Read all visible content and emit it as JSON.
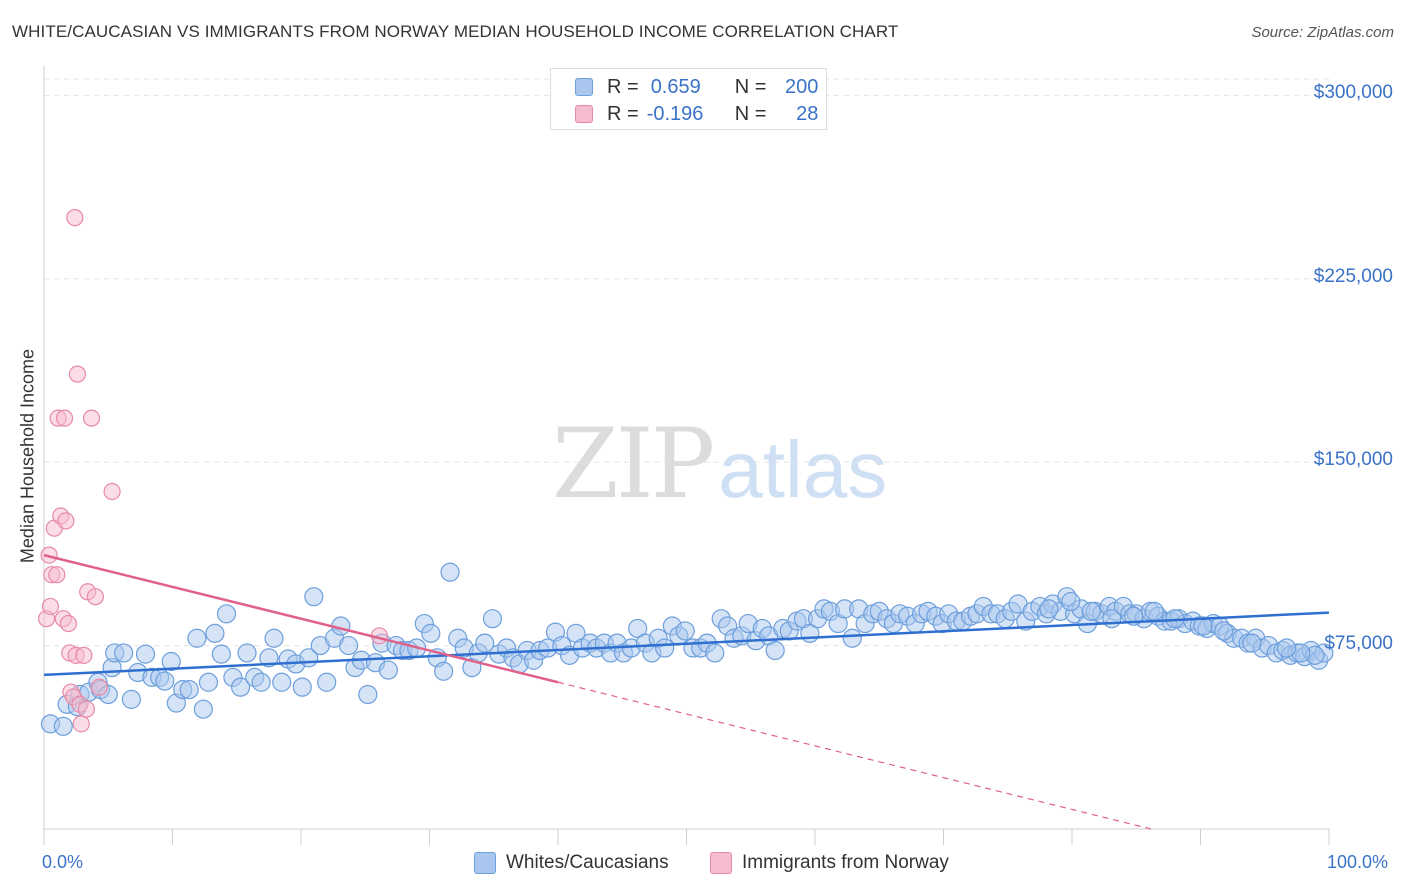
{
  "header": {
    "title": "WHITE/CAUCASIAN VS IMMIGRANTS FROM NORWAY MEDIAN HOUSEHOLD INCOME CORRELATION CHART",
    "source": "Source: ZipAtlas.com"
  },
  "watermark": {
    "zip": "ZIP",
    "atlas": "atlas"
  },
  "legend": {
    "series1": {
      "r_label": "R =",
      "r_value": "0.659",
      "n_label": "N =",
      "n_value": "200"
    },
    "series2": {
      "r_label": "R =",
      "r_value": "-0.196",
      "n_label": "N =",
      "n_value": "28"
    }
  },
  "colors": {
    "blue_fill": "#a9c7ee",
    "blue_stroke": "#6d9fdc",
    "blue_line": "#2f6fcf",
    "pink_fill": "#f5bccd",
    "pink_stroke": "#e88aa6",
    "pink_line": "#e0608a",
    "accent_text": "#3a72c8"
  },
  "chart_data": {
    "type": "scatter",
    "title": "WHITE/CAUCASIAN VS IMMIGRANTS FROM NORWAY MEDIAN HOUSEHOLD INCOME CORRELATION CHART",
    "xlabel": "",
    "ylabel": "Median Household Income",
    "xlim": [
      0,
      100
    ],
    "ylim": [
      0,
      312000
    ],
    "x_tick_labels": [
      "0.0%",
      "100.0%"
    ],
    "y_ticks": [
      75000,
      150000,
      225000,
      300000
    ],
    "y_tick_labels": [
      "$75,000",
      "$150,000",
      "$225,000",
      "$300,000"
    ],
    "grid": true,
    "legend_position": "bottom-center",
    "series": [
      {
        "name": "Whites/Caucasians",
        "color": "#a9c7ee",
        "trend": {
          "x": [
            0,
            100
          ],
          "y": [
            63000,
            88500
          ]
        },
        "points": [
          [
            0.5,
            43000
          ],
          [
            1.5,
            42000
          ],
          [
            1.8,
            51000
          ],
          [
            2.8,
            55000
          ],
          [
            2.6,
            50000
          ],
          [
            3.5,
            56000
          ],
          [
            4.2,
            60000
          ],
          [
            4.4,
            57000
          ],
          [
            5.0,
            55000
          ],
          [
            5.3,
            66000
          ],
          [
            5.5,
            72000
          ],
          [
            6.2,
            72000
          ],
          [
            6.8,
            53000
          ],
          [
            7.3,
            64000
          ],
          [
            7.9,
            71500
          ],
          [
            8.4,
            62000
          ],
          [
            9.0,
            62000
          ],
          [
            9.4,
            60500
          ],
          [
            9.9,
            68500
          ],
          [
            10.3,
            51500
          ],
          [
            10.8,
            57000
          ],
          [
            11.3,
            57000
          ],
          [
            11.9,
            78000
          ],
          [
            12.4,
            49000
          ],
          [
            12.8,
            60000
          ],
          [
            13.3,
            80000
          ],
          [
            13.8,
            71500
          ],
          [
            14.2,
            88000
          ],
          [
            14.7,
            62000
          ],
          [
            15.3,
            58000
          ],
          [
            15.8,
            72000
          ],
          [
            16.4,
            62000
          ],
          [
            16.9,
            60000
          ],
          [
            17.5,
            70000
          ],
          [
            17.9,
            78000
          ],
          [
            18.5,
            60000
          ],
          [
            19.0,
            69500
          ],
          [
            19.6,
            67500
          ],
          [
            20.1,
            58000
          ],
          [
            20.6,
            70000
          ],
          [
            21.0,
            95000
          ],
          [
            21.5,
            75000
          ],
          [
            22.0,
            60000
          ],
          [
            22.6,
            78000
          ],
          [
            23.1,
            83000
          ],
          [
            23.7,
            75000
          ],
          [
            24.2,
            66000
          ],
          [
            24.7,
            69000
          ],
          [
            25.2,
            55000
          ],
          [
            25.8,
            68000
          ],
          [
            26.3,
            76000
          ],
          [
            26.8,
            65000
          ],
          [
            27.4,
            75000
          ],
          [
            27.9,
            73000
          ],
          [
            28.4,
            73000
          ],
          [
            29.0,
            74000
          ],
          [
            29.6,
            84000
          ],
          [
            30.1,
            80000
          ],
          [
            30.6,
            70000
          ],
          [
            31.1,
            64500
          ],
          [
            31.6,
            105000
          ],
          [
            32.2,
            78000
          ],
          [
            32.7,
            74000
          ],
          [
            33.3,
            66000
          ],
          [
            33.8,
            72000
          ],
          [
            34.3,
            76000
          ],
          [
            34.9,
            86000
          ],
          [
            35.4,
            71500
          ],
          [
            36.0,
            74000
          ],
          [
            36.5,
            70000
          ],
          [
            37.0,
            67500
          ],
          [
            37.6,
            73000
          ],
          [
            38.1,
            69000
          ],
          [
            38.6,
            73000
          ],
          [
            39.2,
            74000
          ],
          [
            39.8,
            80500
          ],
          [
            40.3,
            75000
          ],
          [
            40.9,
            71000
          ],
          [
            41.4,
            80000
          ],
          [
            41.9,
            74000
          ],
          [
            42.5,
            76000
          ],
          [
            43.0,
            74000
          ],
          [
            43.6,
            76000
          ],
          [
            44.1,
            72000
          ],
          [
            44.6,
            76000
          ],
          [
            45.1,
            72000
          ],
          [
            45.7,
            74000
          ],
          [
            46.2,
            82000
          ],
          [
            46.8,
            76000
          ],
          [
            47.3,
            72000
          ],
          [
            47.8,
            78000
          ],
          [
            48.3,
            74000
          ],
          [
            48.9,
            83000
          ],
          [
            49.4,
            79000
          ],
          [
            49.9,
            81000
          ],
          [
            50.5,
            74000
          ],
          [
            51.1,
            74000
          ],
          [
            51.6,
            76000
          ],
          [
            52.2,
            72000
          ],
          [
            52.7,
            86000
          ],
          [
            53.2,
            83000
          ],
          [
            53.7,
            78000
          ],
          [
            54.3,
            79000
          ],
          [
            54.8,
            84000
          ],
          [
            55.4,
            77000
          ],
          [
            55.9,
            82000
          ],
          [
            56.4,
            79000
          ],
          [
            56.9,
            73000
          ],
          [
            57.5,
            82000
          ],
          [
            58.0,
            81000
          ],
          [
            58.6,
            85000
          ],
          [
            59.1,
            86000
          ],
          [
            59.6,
            80000
          ],
          [
            60.2,
            86000
          ],
          [
            60.7,
            90000
          ],
          [
            61.2,
            89000
          ],
          [
            61.8,
            84000
          ],
          [
            62.3,
            90000
          ],
          [
            62.9,
            78000
          ],
          [
            63.4,
            90000
          ],
          [
            63.9,
            84000
          ],
          [
            64.5,
            88000
          ],
          [
            65.0,
            89000
          ],
          [
            65.6,
            86000
          ],
          [
            66.1,
            84000
          ],
          [
            66.6,
            88000
          ],
          [
            67.2,
            87000
          ],
          [
            67.8,
            84000
          ],
          [
            68.3,
            88000
          ],
          [
            68.8,
            89000
          ],
          [
            69.4,
            87000
          ],
          [
            69.9,
            84000
          ],
          [
            70.4,
            88000
          ],
          [
            71.0,
            85000
          ],
          [
            71.5,
            85000
          ],
          [
            72.1,
            87000
          ],
          [
            72.6,
            88000
          ],
          [
            73.1,
            91000
          ],
          [
            73.7,
            88000
          ],
          [
            74.2,
            88000
          ],
          [
            74.8,
            86000
          ],
          [
            75.3,
            89000
          ],
          [
            75.8,
            92000
          ],
          [
            76.4,
            85000
          ],
          [
            76.9,
            89000
          ],
          [
            77.5,
            91000
          ],
          [
            78.0,
            88000
          ],
          [
            78.5,
            92000
          ],
          [
            79.1,
            89000
          ],
          [
            79.6,
            95000
          ],
          [
            80.2,
            88000
          ],
          [
            80.7,
            90000
          ],
          [
            81.2,
            84000
          ],
          [
            81.8,
            89000
          ],
          [
            82.3,
            88000
          ],
          [
            82.9,
            91000
          ],
          [
            83.4,
            89000
          ],
          [
            84.0,
            91000
          ],
          [
            84.5,
            88000
          ],
          [
            85.0,
            88000
          ],
          [
            85.6,
            86000
          ],
          [
            86.1,
            89000
          ],
          [
            86.7,
            87000
          ],
          [
            87.2,
            85000
          ],
          [
            87.7,
            85000
          ],
          [
            88.3,
            86000
          ],
          [
            88.8,
            84000
          ],
          [
            89.4,
            85000
          ],
          [
            89.9,
            83000
          ],
          [
            90.5,
            82000
          ],
          [
            91.0,
            84000
          ],
          [
            91.5,
            83000
          ],
          [
            92.1,
            80000
          ],
          [
            92.6,
            78000
          ],
          [
            93.2,
            78000
          ],
          [
            93.7,
            76000
          ],
          [
            94.3,
            78000
          ],
          [
            94.8,
            74000
          ],
          [
            95.3,
            75000
          ],
          [
            95.9,
            72000
          ],
          [
            96.4,
            73000
          ],
          [
            97.0,
            71000
          ],
          [
            97.5,
            72000
          ],
          [
            98.1,
            70500
          ],
          [
            98.6,
            73000
          ],
          [
            99.2,
            69000
          ],
          [
            99.6,
            72000
          ],
          [
            98.9,
            71000
          ],
          [
            97.8,
            72000
          ],
          [
            96.7,
            74000
          ],
          [
            94.0,
            76000
          ],
          [
            91.8,
            81000
          ],
          [
            90.2,
            83000
          ],
          [
            88.0,
            86000
          ],
          [
            86.4,
            89000
          ],
          [
            84.8,
            87000
          ],
          [
            83.1,
            86000
          ],
          [
            81.5,
            89000
          ],
          [
            79.9,
            93000
          ],
          [
            78.2,
            90000
          ]
        ]
      },
      {
        "name": "Immigrants from Norway",
        "color": "#f5bccd",
        "trend": {
          "x": [
            0,
            40
          ],
          "y": [
            112000,
            60000
          ]
        },
        "trend_extension": {
          "x": [
            40,
            100
          ],
          "y": [
            60000,
            -18000
          ]
        },
        "points": [
          [
            0.2,
            86000
          ],
          [
            0.4,
            112000
          ],
          [
            0.5,
            91000
          ],
          [
            0.6,
            104000
          ],
          [
            0.8,
            123000
          ],
          [
            1.0,
            104000
          ],
          [
            1.1,
            168000
          ],
          [
            1.3,
            128000
          ],
          [
            1.5,
            86000
          ],
          [
            1.6,
            168000
          ],
          [
            1.7,
            126000
          ],
          [
            1.9,
            84000
          ],
          [
            2.0,
            72000
          ],
          [
            2.1,
            56000
          ],
          [
            2.3,
            54000
          ],
          [
            2.4,
            250000
          ],
          [
            2.5,
            71000
          ],
          [
            2.6,
            186000
          ],
          [
            2.8,
            51000
          ],
          [
            2.9,
            43000
          ],
          [
            3.1,
            71000
          ],
          [
            3.3,
            49000
          ],
          [
            3.4,
            97000
          ],
          [
            3.7,
            168000
          ],
          [
            4.0,
            95000
          ],
          [
            4.3,
            58000
          ],
          [
            5.3,
            138000
          ],
          [
            26.1,
            79000
          ]
        ]
      }
    ]
  },
  "legend_bottom": {
    "series1": "Whites/Caucasians",
    "series2": "Immigrants from Norway"
  }
}
